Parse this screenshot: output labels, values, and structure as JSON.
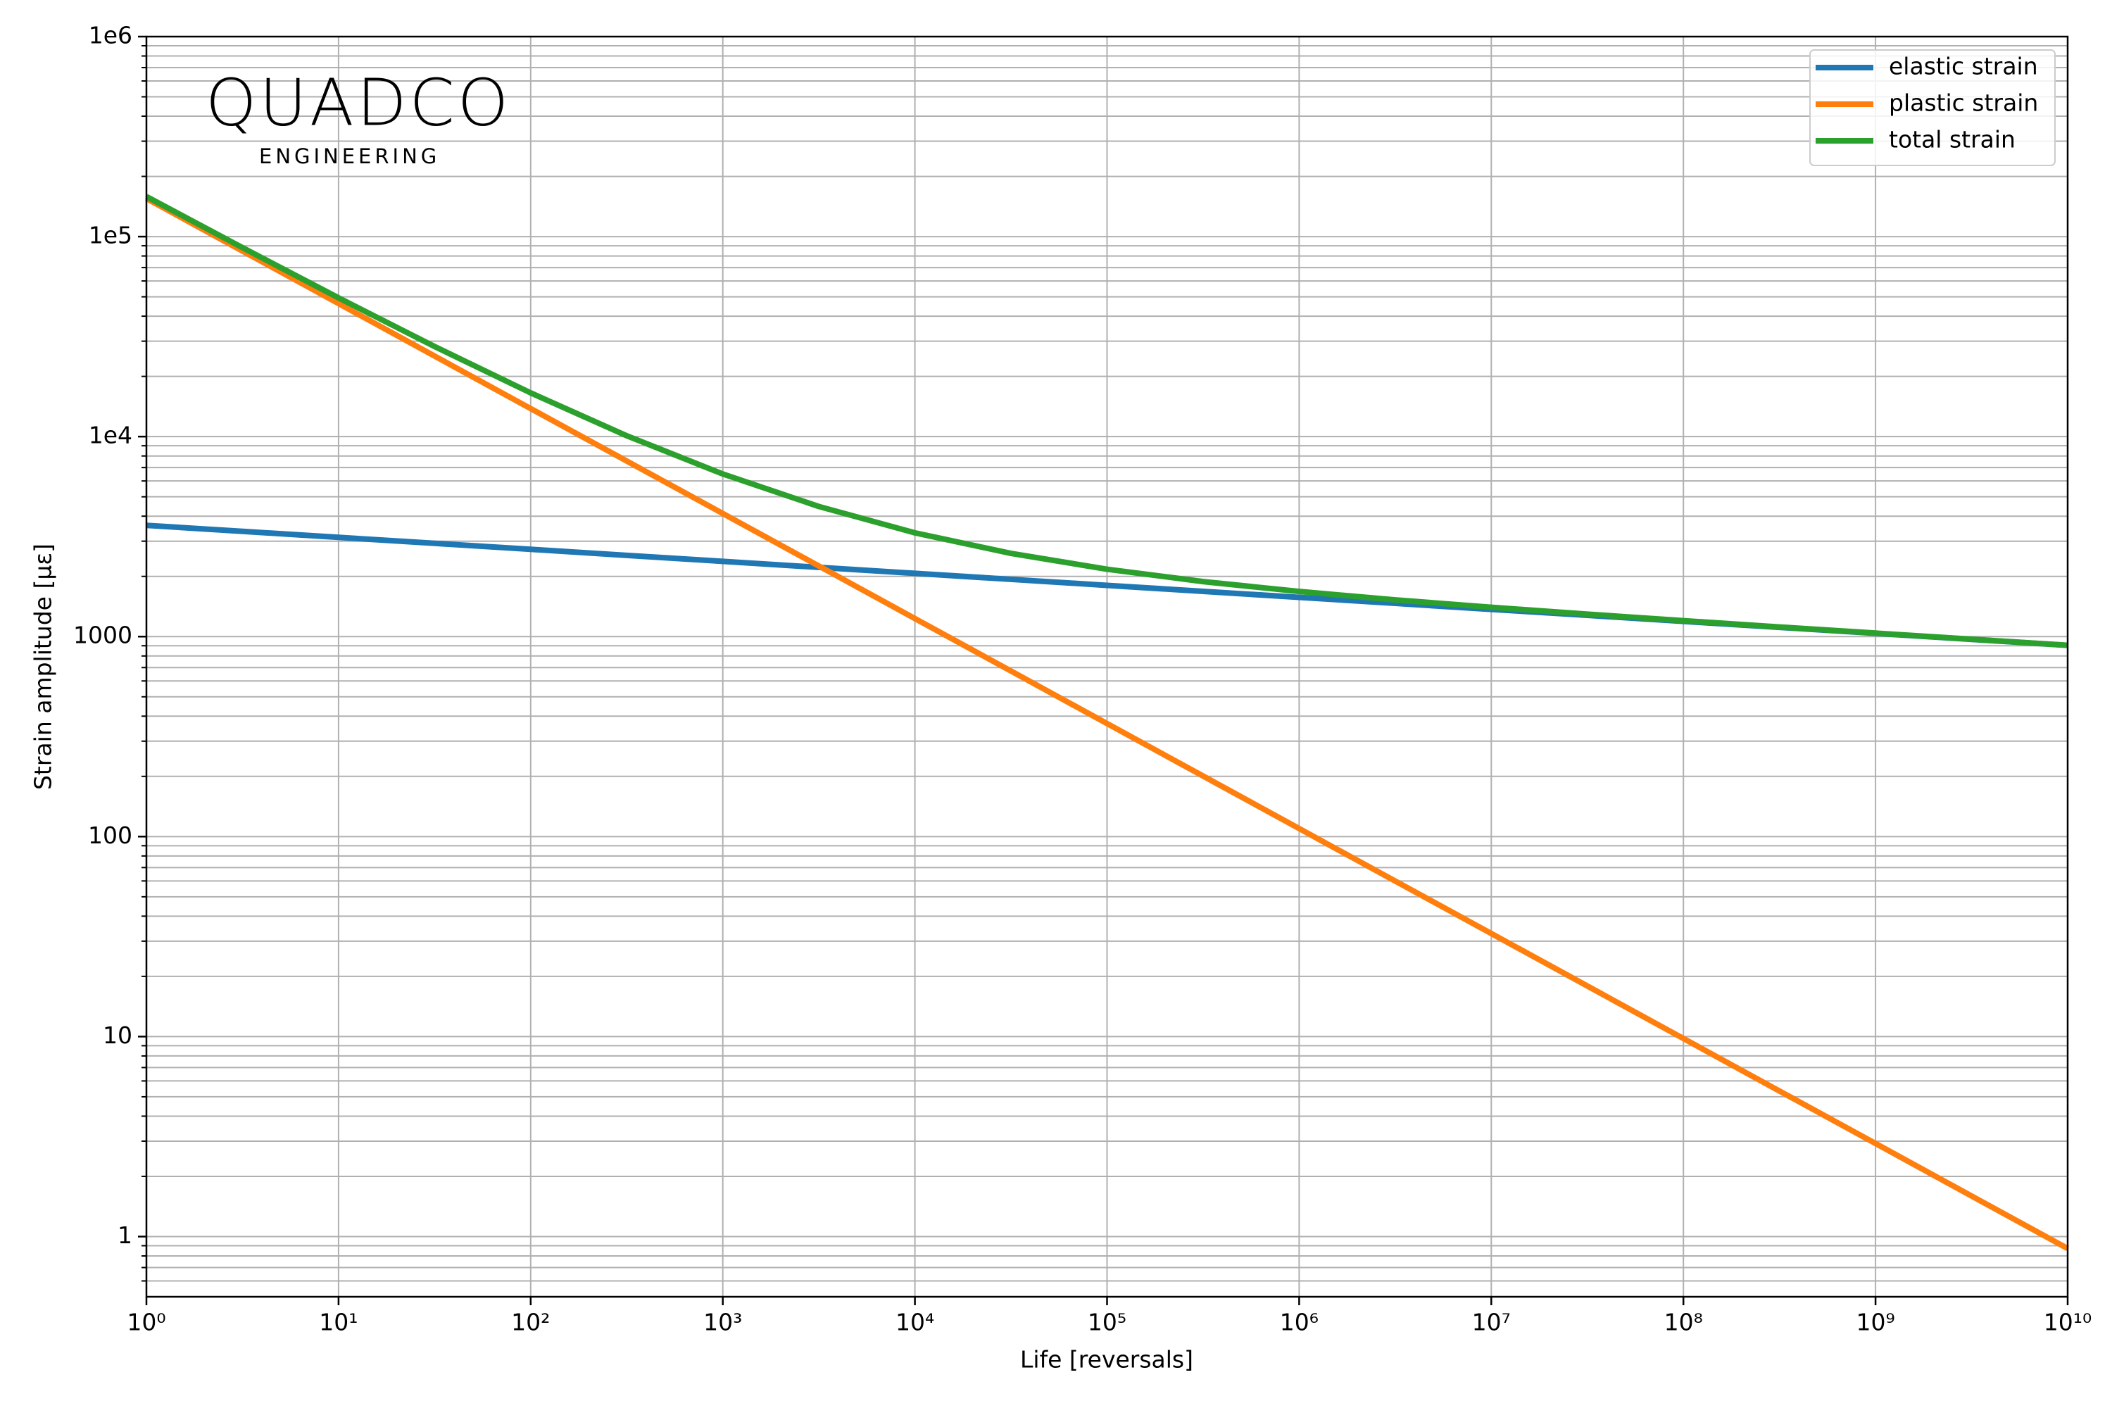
{
  "chart_data": {
    "type": "line",
    "xlabel": "Life [reversals]",
    "ylabel": "Strain amplitude [με]",
    "logo_text": "QUADCO",
    "logo_subtext": "ENGINEERING",
    "xscale": "log",
    "yscale": "log",
    "grid": true,
    "minor_grid": true,
    "legend": "upper right",
    "xlim": [
      1,
      10000000000
    ],
    "ylim": [
      0.5,
      1000000
    ],
    "xticks": [
      {
        "value": 1,
        "label": "10⁰"
      },
      {
        "value": 10,
        "label": "10¹"
      },
      {
        "value": 100,
        "label": "10²"
      },
      {
        "value": 1000,
        "label": "10³"
      },
      {
        "value": 10000,
        "label": "10⁴"
      },
      {
        "value": 100000,
        "label": "10⁵"
      },
      {
        "value": 1000000,
        "label": "10⁶"
      },
      {
        "value": 10000000,
        "label": "10⁷"
      },
      {
        "value": 100000000,
        "label": "10⁸"
      },
      {
        "value": 1000000000,
        "label": "10⁹"
      },
      {
        "value": 10000000000,
        "label": "10¹⁰"
      }
    ],
    "yticks": [
      1,
      10,
      100,
      1000,
      {
        "value": 10000,
        "label": "1e4"
      },
      {
        "value": 100000,
        "label": "1e5"
      },
      {
        "value": 1000000,
        "label": "1e6"
      }
    ],
    "x": [
      1,
      3.162,
      10,
      31.62,
      100,
      316.2,
      1000,
      3162,
      10000,
      31623,
      100000,
      316228,
      1000000,
      3162278,
      10000000,
      31622777,
      100000000,
      316227766,
      1000000000,
      3162277660,
      10000000000
    ],
    "series": [
      {
        "name": "elastic strain",
        "color": "#1f77b4",
        "values": [
          3600,
          3359,
          3135,
          2926,
          2731,
          2548,
          2378,
          2219,
          2071,
          1933,
          1804,
          1683,
          1571,
          1466,
          1368,
          1277,
          1191,
          1112,
          1038,
          968,
          904
        ]
      },
      {
        "name": "plastic strain",
        "color": "#ff7f0e",
        "values": [
          155000,
          84700,
          46270,
          25280,
          13810,
          7549,
          4125,
          2254,
          1231,
          672.7,
          367.5,
          200.8,
          109.7,
          59.95,
          32.76,
          17.9,
          9.78,
          5.343,
          2.92,
          1.595,
          0.8716
        ]
      },
      {
        "name": "total strain",
        "color": "#2ca02c",
        "values": [
          158600,
          88059,
          49405,
          28206,
          16541,
          10097,
          6503,
          4473,
          3302,
          2606,
          2172,
          1884,
          1681,
          1526,
          1401,
          1295,
          1201,
          1117,
          1041,
          970,
          905
        ]
      }
    ]
  }
}
